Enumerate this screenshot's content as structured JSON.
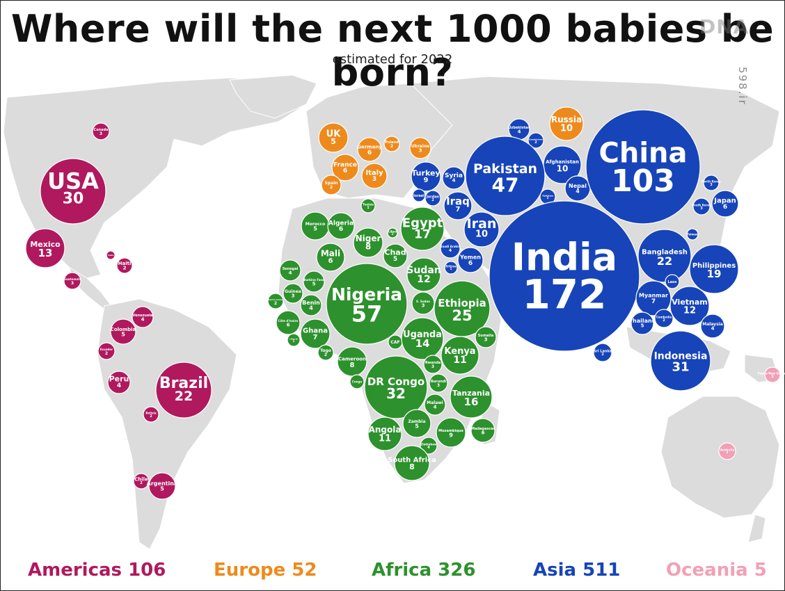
{
  "header": {
    "title": "Where will the next 1000 babies be born?",
    "subtitle": "estimated for 2022",
    "watermark": "DNA",
    "watermark_sub": "598.ir"
  },
  "colors": {
    "Americas": "#b0195e",
    "Europe": "#ee8a1c",
    "Africa": "#2d912d",
    "Asia": "#1744b8",
    "Oceania": "#f2a0b6",
    "land": "#dcdcdc"
  },
  "region_totals": [
    {
      "label": "Americas 106",
      "region": "Americas"
    },
    {
      "label": "Europe 52",
      "region": "Europe"
    },
    {
      "label": "Africa 326",
      "region": "Africa"
    },
    {
      "label": "Asia 511",
      "region": "Asia"
    },
    {
      "label": "Oceania  5",
      "region": "Oceania"
    }
  ],
  "countries": [
    {
      "name": "Canada",
      "value": "3",
      "region": "Americas"
    },
    {
      "name": "USA",
      "value": "30",
      "region": "Americas"
    },
    {
      "name": "Mexico",
      "value": "13",
      "region": "Americas"
    },
    {
      "name": "Cuba",
      "value": "",
      "region": "Americas"
    },
    {
      "name": "Haiti",
      "value": "2",
      "region": "Americas"
    },
    {
      "name": "Guatemala",
      "value": "3",
      "region": "Americas"
    },
    {
      "name": "Venezuela",
      "value": "4",
      "region": "Americas"
    },
    {
      "name": "Colombia",
      "value": "5",
      "region": "Americas"
    },
    {
      "name": "Ecuador",
      "value": "2",
      "region": "Americas"
    },
    {
      "name": "Peru",
      "value": "4",
      "region": "Americas"
    },
    {
      "name": "Brazil",
      "value": "22",
      "region": "Americas"
    },
    {
      "name": "Bolivia",
      "value": "2",
      "region": "Americas"
    },
    {
      "name": "Chile",
      "value": "2",
      "region": "Americas"
    },
    {
      "name": "Argentina",
      "value": "5",
      "region": "Americas"
    },
    {
      "name": "UK",
      "value": "5",
      "region": "Europe"
    },
    {
      "name": "Germany",
      "value": "6",
      "region": "Europe"
    },
    {
      "name": "Poland",
      "value": "2",
      "region": "Europe"
    },
    {
      "name": "Ukraine",
      "value": "3",
      "region": "Europe"
    },
    {
      "name": "France",
      "value": "6",
      "region": "Europe"
    },
    {
      "name": "Italy",
      "value": "3",
      "region": "Europe"
    },
    {
      "name": "Spain",
      "value": "2",
      "region": "Europe"
    },
    {
      "name": "Russia",
      "value": "10",
      "region": "Europe"
    },
    {
      "name": "Morocco",
      "value": "5",
      "region": "Africa"
    },
    {
      "name": "Algeria",
      "value": "6",
      "region": "Africa"
    },
    {
      "name": "Tunisia",
      "value": "1",
      "region": "Africa"
    },
    {
      "name": "Libya",
      "value": "1",
      "region": "Africa"
    },
    {
      "name": "Egypt",
      "value": "17",
      "region": "Africa"
    },
    {
      "name": "Niger",
      "value": "8",
      "region": "Africa"
    },
    {
      "name": "Mali",
      "value": "6",
      "region": "Africa"
    },
    {
      "name": "Chad",
      "value": "5",
      "region": "Africa"
    },
    {
      "name": "Sudan",
      "value": "12",
      "region": "Africa"
    },
    {
      "name": "Senegal",
      "value": "4",
      "region": "Africa"
    },
    {
      "name": "Burkina Faso",
      "value": "5",
      "region": "Africa"
    },
    {
      "name": "Guinea",
      "value": "3",
      "region": "Africa"
    },
    {
      "name": "Sierra Leone",
      "value": "2",
      "region": "Africa"
    },
    {
      "name": "Benin",
      "value": "4",
      "region": "Africa"
    },
    {
      "name": "Nigeria",
      "value": "57",
      "region": "Africa"
    },
    {
      "name": "Côte d'Ivoire",
      "value": "6",
      "region": "Africa"
    },
    {
      "name": "Liberia",
      "value": "1",
      "region": "Africa"
    },
    {
      "name": "Ghana",
      "value": "7",
      "region": "Africa"
    },
    {
      "name": "Togo",
      "value": "2",
      "region": "Africa"
    },
    {
      "name": "Cameroon",
      "value": "8",
      "region": "Africa"
    },
    {
      "name": "CAF",
      "value": "",
      "region": "Africa"
    },
    {
      "name": "S. Sudan",
      "value": "3",
      "region": "Africa"
    },
    {
      "name": "Ethiopia",
      "value": "25",
      "region": "Africa"
    },
    {
      "name": "Uganda",
      "value": "14",
      "region": "Africa"
    },
    {
      "name": "Somalia",
      "value": "3",
      "region": "Africa"
    },
    {
      "name": "Kenya",
      "value": "11",
      "region": "Africa"
    },
    {
      "name": "Congo",
      "value": "",
      "region": "Africa"
    },
    {
      "name": "DR Congo",
      "value": "32",
      "region": "Africa"
    },
    {
      "name": "Rwanda",
      "value": "3",
      "region": "Africa"
    },
    {
      "name": "Burundi",
      "value": "3",
      "region": "Africa"
    },
    {
      "name": "Tanzania",
      "value": "16",
      "region": "Africa"
    },
    {
      "name": "Malawi",
      "value": "4",
      "region": "Africa"
    },
    {
      "name": "Angola",
      "value": "11",
      "region": "Africa"
    },
    {
      "name": "Zambia",
      "value": "5",
      "region": "Africa"
    },
    {
      "name": "Mozambique",
      "value": "9",
      "region": "Africa"
    },
    {
      "name": "Madagascar",
      "value": "6",
      "region": "Africa"
    },
    {
      "name": "Zimbabwe",
      "value": "4",
      "region": "Africa"
    },
    {
      "name": "South Africa",
      "value": "8",
      "region": "Africa"
    },
    {
      "name": "Turkey",
      "value": "9",
      "region": "Asia"
    },
    {
      "name": "Syria",
      "value": "4",
      "region": "Asia"
    },
    {
      "name": "Israel",
      "value": "",
      "region": "Asia"
    },
    {
      "name": "Jordan",
      "value": "2",
      "region": "Asia"
    },
    {
      "name": "Iraq",
      "value": "7",
      "region": "Asia"
    },
    {
      "name": "Iran",
      "value": "10",
      "region": "Asia"
    },
    {
      "name": "Saudi Arabia",
      "value": "4",
      "region": "Asia"
    },
    {
      "name": "Yemen",
      "value": "6",
      "region": "Asia"
    },
    {
      "name": "Eritrea",
      "value": "1",
      "region": "Asia"
    },
    {
      "name": "Uzbekistan",
      "value": "4",
      "region": "Asia"
    },
    {
      "name": "Kazakhstan",
      "value": "2",
      "region": "Asia"
    },
    {
      "name": "Afghanistan",
      "value": "10",
      "region": "Asia"
    },
    {
      "name": "Pakistan",
      "value": "47",
      "region": "Asia"
    },
    {
      "name": "Tajikistan",
      "value": "2",
      "region": "Asia"
    },
    {
      "name": "Nepal",
      "value": "4",
      "region": "Asia"
    },
    {
      "name": "China",
      "value": "103",
      "region": "Asia"
    },
    {
      "name": "North Korea",
      "value": "3",
      "region": "Asia"
    },
    {
      "name": "South Korea",
      "value": "3",
      "region": "Asia"
    },
    {
      "name": "Japan",
      "value": "6",
      "region": "Asia"
    },
    {
      "name": "India",
      "value": "172",
      "region": "Asia"
    },
    {
      "name": "Bangladesh",
      "value": "22",
      "region": "Asia"
    },
    {
      "name": "Taiwan",
      "value": "",
      "region": "Asia"
    },
    {
      "name": "Philippines",
      "value": "19",
      "region": "Asia"
    },
    {
      "name": "Myanmar",
      "value": "7",
      "region": "Asia"
    },
    {
      "name": "Laos",
      "value": "",
      "region": "Asia"
    },
    {
      "name": "Vietnam",
      "value": "12",
      "region": "Asia"
    },
    {
      "name": "Thailand",
      "value": "5",
      "region": "Asia"
    },
    {
      "name": "Cambodia",
      "value": "2",
      "region": "Asia"
    },
    {
      "name": "Malaysia",
      "value": "4",
      "region": "Asia"
    },
    {
      "name": "Sri Lanka",
      "value": "2",
      "region": "Asia"
    },
    {
      "name": "Indonesia",
      "value": "31",
      "region": "Asia"
    },
    {
      "name": "Papua New Guinea",
      "value": "2",
      "region": "Oceania"
    },
    {
      "name": "Australia",
      "value": "2",
      "region": "Oceania"
    }
  ]
}
